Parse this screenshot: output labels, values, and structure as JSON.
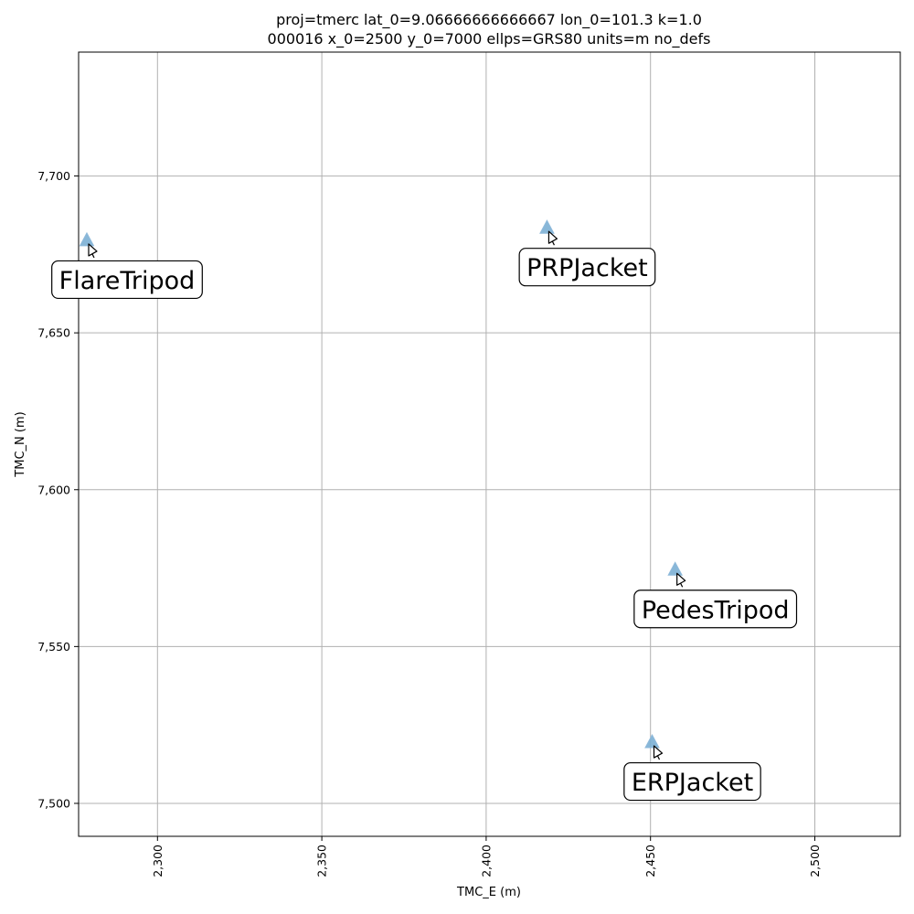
{
  "chart_data": {
    "type": "scatter",
    "title_lines": [
      "proj=tmerc lat_0=9.06666666666667 lon_0=101.3 k=1.0",
      "000016 x_0=2500 y_0=7000 ellps=GRS80 units=m no_defs"
    ],
    "xlabel": "TMC_E (m)",
    "ylabel": "TMC_N (m)",
    "xlim": [
      2276,
      2526
    ],
    "ylim": [
      7489.5,
      7739.5
    ],
    "xticks": [
      2300,
      2350,
      2400,
      2450,
      2500
    ],
    "yticks": [
      7500,
      7550,
      7600,
      7650,
      7700
    ],
    "xtick_labels": [
      "2,300",
      "2,350",
      "2,400",
      "2,450",
      "2,500"
    ],
    "ytick_labels": [
      "7,500",
      "7,550",
      "7,600",
      "7,650",
      "7,700"
    ],
    "grid": true,
    "marker": "triangle",
    "marker_color": "#7bafd4",
    "points": [
      {
        "label": "FlareTripod",
        "x": 2278.5,
        "y": 7679.5
      },
      {
        "label": "PRPJacket",
        "x": 2418.5,
        "y": 7683.5
      },
      {
        "label": "PedesTripod",
        "x": 2457.5,
        "y": 7574.5
      },
      {
        "label": "ERPJacket",
        "x": 2450.5,
        "y": 7519.5
      }
    ]
  }
}
